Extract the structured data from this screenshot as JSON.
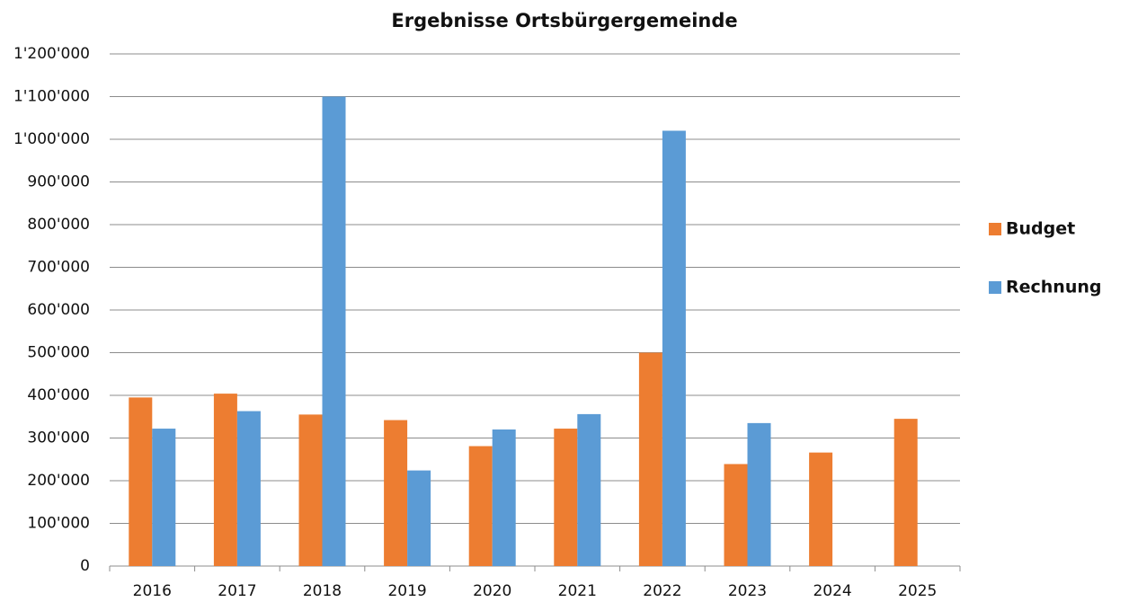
{
  "chart_data": {
    "type": "bar",
    "title": "Ergebnisse Ortsbürgergemeinde",
    "categories": [
      "2016",
      "2017",
      "2018",
      "2019",
      "2020",
      "2021",
      "2022",
      "2023",
      "2024",
      "2025"
    ],
    "series": [
      {
        "name": "Budget",
        "color": "#ed7d31",
        "values": [
          395000,
          404000,
          355000,
          342000,
          281000,
          322000,
          500000,
          239000,
          266000,
          345000
        ]
      },
      {
        "name": "Rechnung",
        "color": "#5b9bd5",
        "values": [
          322000,
          363000,
          1100000,
          224000,
          320000,
          356000,
          1020000,
          335000,
          null,
          null
        ]
      }
    ],
    "ylim": [
      0,
      1200000
    ],
    "yticks": [
      0,
      {
        "value": 100000,
        "label": "100'000"
      },
      {
        "value": 200000,
        "label": "200'000"
      },
      {
        "value": 300000,
        "label": "300'000"
      },
      {
        "value": 400000,
        "label": "400'000"
      },
      {
        "value": 500000,
        "label": "500'000"
      },
      {
        "value": 600000,
        "label": "600'000"
      },
      {
        "value": 700000,
        "label": "700'000"
      },
      {
        "value": 800000,
        "label": "800'000"
      },
      {
        "value": 900000,
        "label": "900'000"
      },
      {
        "value": 1000000,
        "label": "1'000'000"
      },
      {
        "value": 1100000,
        "label": "1'100'000"
      },
      {
        "value": 1200000,
        "label": "1'200'000"
      }
    ],
    "grid": true,
    "legend": "right"
  }
}
